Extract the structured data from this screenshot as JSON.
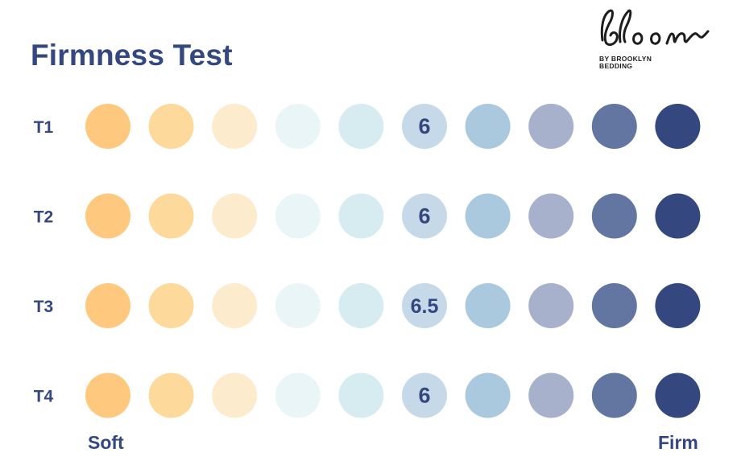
{
  "title": "Firmness Test",
  "logo": {
    "wordmark": "bloom",
    "tagline_line1": "BY BROOKLYN",
    "tagline_line2": "BEDDING"
  },
  "chart_data": {
    "type": "dot-scale",
    "title": "Firmness Test",
    "scale_min_label": "Soft",
    "scale_max_label": "Firm",
    "scale_points": [
      1,
      2,
      3,
      4,
      5,
      6,
      7,
      8,
      9,
      10
    ],
    "colors": [
      "#fec97f",
      "#fdd99b",
      "#fdebcd",
      "#eaf5f7",
      "#d6ecf0",
      "#c5d9e8",
      "#aac9df",
      "#a7b1cc",
      "#6375a1",
      "#34477e"
    ],
    "highlight_position": 6,
    "rows": [
      {
        "label": "T1",
        "value": "6"
      },
      {
        "label": "T2",
        "value": "6"
      },
      {
        "label": "T3",
        "value": "6.5"
      },
      {
        "label": "T4",
        "value": "6"
      }
    ]
  }
}
